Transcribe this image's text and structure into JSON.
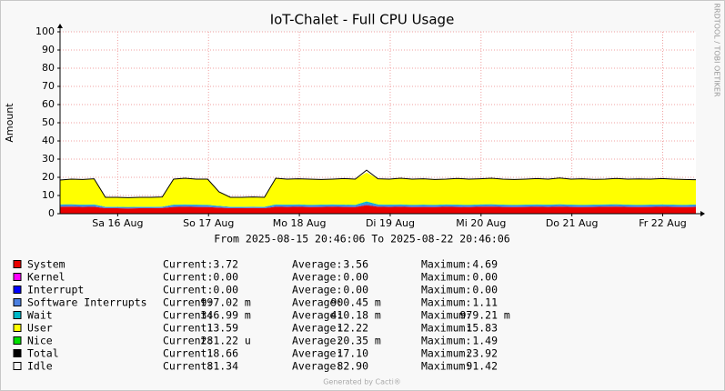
{
  "chart_data": {
    "type": "stacked_area",
    "title": "IoT-Chalet - Full CPU Usage",
    "y_label": "Amount",
    "side_text": "RRDTOOL / TOBI OETIKER",
    "range_text": "From 2025-08-15 20:46:06 To 2025-08-22 20:46:06",
    "footer": "Generated by Cacti®",
    "legend_labels": {
      "current": "Current:",
      "average": "Average:",
      "maximum": "Maximum:"
    },
    "xlim": [
      "2025-08-15 20:46:06",
      "2025-08-22 20:46:06"
    ],
    "xticks": [
      {
        "value": "2025-08-16 12:00",
        "label": "Sa 16 Aug"
      },
      {
        "value": "2025-08-17 12:00",
        "label": "So 17 Aug"
      },
      {
        "value": "2025-08-18 12:00",
        "label": "Mo 18 Aug"
      },
      {
        "value": "2025-08-19 12:00",
        "label": "Di 19 Aug"
      },
      {
        "value": "2025-08-20 12:00",
        "label": "Mi 20 Aug"
      },
      {
        "value": "2025-08-21 12:00",
        "label": "Do 21 Aug"
      },
      {
        "value": "2025-08-22 12:00",
        "label": "Fr 22 Aug"
      }
    ],
    "ylim": [
      0,
      100
    ],
    "yticks": [
      0,
      10,
      20,
      30,
      40,
      50,
      60,
      70,
      80,
      90,
      100
    ],
    "grid": true,
    "x": [
      "2025-08-15 20:46",
      "2025-08-15 23:46",
      "2025-08-16 02:46",
      "2025-08-16 05:46",
      "2025-08-16 08:46",
      "2025-08-16 11:46",
      "2025-08-16 14:46",
      "2025-08-16 17:46",
      "2025-08-16 20:46",
      "2025-08-16 23:46",
      "2025-08-17 02:46",
      "2025-08-17 05:46",
      "2025-08-17 08:46",
      "2025-08-17 11:46",
      "2025-08-17 14:46",
      "2025-08-17 17:46",
      "2025-08-17 20:46",
      "2025-08-17 23:46",
      "2025-08-18 02:46",
      "2025-08-18 05:46",
      "2025-08-18 08:46",
      "2025-08-18 11:46",
      "2025-08-18 14:46",
      "2025-08-18 17:46",
      "2025-08-18 20:46",
      "2025-08-18 23:46",
      "2025-08-19 02:46",
      "2025-08-19 05:46",
      "2025-08-19 08:46",
      "2025-08-19 11:46",
      "2025-08-19 14:46",
      "2025-08-19 17:46",
      "2025-08-19 20:46",
      "2025-08-19 23:46",
      "2025-08-20 02:46",
      "2025-08-20 05:46",
      "2025-08-20 08:46",
      "2025-08-20 11:46",
      "2025-08-20 14:46",
      "2025-08-20 17:46",
      "2025-08-20 20:46",
      "2025-08-20 23:46",
      "2025-08-21 02:46",
      "2025-08-21 05:46",
      "2025-08-21 08:46",
      "2025-08-21 11:46",
      "2025-08-21 14:46",
      "2025-08-21 17:46",
      "2025-08-21 20:46",
      "2025-08-21 23:46",
      "2025-08-22 02:46",
      "2025-08-22 05:46",
      "2025-08-22 08:46",
      "2025-08-22 11:46",
      "2025-08-22 14:46",
      "2025-08-22 17:46",
      "2025-08-22 20:46"
    ],
    "series": [
      {
        "name": "System",
        "color": "#EA0000",
        "style": "area",
        "current": "3.72",
        "average": "3.56",
        "maximum": "4.69",
        "values": [
          3.8,
          3.9,
          3.7,
          3.8,
          3.0,
          3.0,
          2.9,
          3.0,
          3.0,
          3.1,
          3.7,
          3.8,
          3.7,
          3.6,
          3.3,
          3.0,
          3.0,
          3.1,
          3.0,
          3.8,
          3.7,
          3.8,
          3.6,
          3.7,
          3.8,
          3.7,
          3.6,
          4.69,
          3.8,
          3.7,
          3.8,
          3.6,
          3.7,
          3.6,
          3.8,
          3.7,
          3.6,
          3.8,
          3.9,
          3.7,
          3.6,
          3.7,
          3.8,
          3.7,
          3.9,
          3.7,
          3.6,
          3.7,
          3.8,
          3.9,
          3.7,
          3.6,
          3.7,
          3.8,
          3.7,
          3.6,
          3.72
        ]
      },
      {
        "name": "Kernel",
        "color": "#FF00FF",
        "current": "0.00",
        "average": "0.00",
        "maximum": "0.00"
      },
      {
        "name": "Interrupt",
        "color": "#0000FF",
        "current": "0.00",
        "average": "0.00",
        "maximum": "0.00"
      },
      {
        "name": "Software Interrupts",
        "color": "#4A7FE0",
        "style": "area",
        "current": "997.02 m",
        "average": "900.45 m",
        "maximum": "1.11",
        "values": [
          0.9,
          0.9,
          0.9,
          0.9,
          0.6,
          0.6,
          0.6,
          0.6,
          0.6,
          0.6,
          0.9,
          0.9,
          0.9,
          0.9,
          0.7,
          0.6,
          0.6,
          0.6,
          0.6,
          0.9,
          0.9,
          0.9,
          0.9,
          0.9,
          0.9,
          0.9,
          0.9,
          1.11,
          0.9,
          0.9,
          0.9,
          0.9,
          0.9,
          0.9,
          0.9,
          0.9,
          0.9,
          0.9,
          0.9,
          0.9,
          0.9,
          0.9,
          0.9,
          0.9,
          0.9,
          0.9,
          0.9,
          0.9,
          0.9,
          0.9,
          0.9,
          0.9,
          0.9,
          0.9,
          0.9,
          0.9,
          1.0
        ]
      },
      {
        "name": "Wait",
        "color": "#00B8C8",
        "style": "area",
        "current": "346.99 m",
        "average": "410.18 m",
        "maximum": "979.21 m",
        "values": [
          0.4,
          0.4,
          0.4,
          0.4,
          0.2,
          0.2,
          0.2,
          0.2,
          0.2,
          0.2,
          0.4,
          0.4,
          0.4,
          0.4,
          0.3,
          0.2,
          0.2,
          0.2,
          0.2,
          0.4,
          0.4,
          0.4,
          0.4,
          0.4,
          0.4,
          0.4,
          0.4,
          0.98,
          0.4,
          0.4,
          0.4,
          0.4,
          0.4,
          0.4,
          0.4,
          0.4,
          0.4,
          0.4,
          0.4,
          0.4,
          0.4,
          0.4,
          0.4,
          0.4,
          0.4,
          0.4,
          0.4,
          0.4,
          0.4,
          0.4,
          0.4,
          0.4,
          0.4,
          0.4,
          0.4,
          0.4,
          0.35
        ]
      },
      {
        "name": "User",
        "color": "#FFFF00",
        "style": "area",
        "current": "13.59",
        "average": "12.22",
        "maximum": "15.83",
        "values": [
          13.4,
          13.8,
          13.8,
          14.1,
          5.2,
          5.2,
          5.1,
          5.2,
          5.2,
          5.3,
          14.0,
          14.4,
          14.0,
          14.1,
          7.7,
          5.2,
          5.2,
          5.3,
          5.2,
          14.4,
          14.0,
          14.1,
          14.1,
          13.8,
          13.9,
          14.3,
          14.1,
          15.83,
          14.1,
          14.0,
          14.4,
          14.1,
          14.2,
          13.9,
          13.9,
          14.4,
          14.1,
          14.1,
          14.3,
          14.0,
          13.9,
          14.0,
          14.2,
          14.0,
          14.4,
          14.0,
          14.3,
          13.9,
          13.9,
          14.2,
          14.0,
          14.2,
          14.0,
          14.2,
          14.0,
          13.9,
          13.59
        ]
      },
      {
        "name": "Nice",
        "color": "#00E000",
        "current": "281.22 u",
        "average": "20.35 m",
        "maximum": "1.49"
      },
      {
        "name": "Total",
        "color": "#000000",
        "style": "line",
        "current": "18.66",
        "average": "17.10",
        "maximum": "23.92",
        "values": [
          18.5,
          19,
          18.8,
          19.2,
          9,
          9,
          8.8,
          9,
          9,
          9.2,
          19,
          19.5,
          19,
          19,
          12,
          9,
          9,
          9.2,
          9,
          19.5,
          19,
          19.2,
          19,
          18.8,
          19,
          19.3,
          19,
          23.92,
          19.2,
          19,
          19.5,
          19,
          19.2,
          18.8,
          19,
          19.4,
          19,
          19.2,
          19.5,
          19,
          18.8,
          19,
          19.3,
          19,
          19.6,
          19,
          19.2,
          18.9,
          19,
          19.4,
          19,
          19.1,
          19,
          19.3,
          19,
          18.8,
          18.66
        ]
      },
      {
        "name": "Idle",
        "color": "#F4F4F4",
        "current": "81.34",
        "average": "82.90",
        "maximum": "91.42"
      }
    ]
  }
}
